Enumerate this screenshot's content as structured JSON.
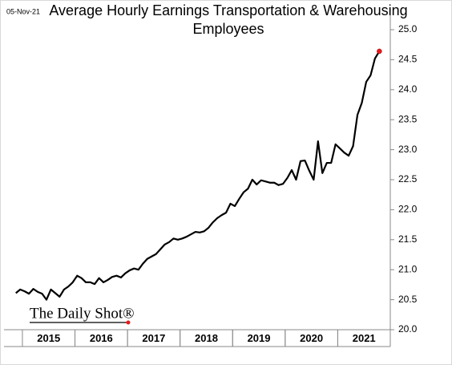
{
  "chart_data": {
    "type": "line",
    "title": "Average Hourly Earnings Transportation & Warehousing Employees",
    "date_label": "05-Nov-21",
    "source": "The Daily Shot®",
    "color": "#000000",
    "marker_color": "#e8191d",
    "x": [
      2014.875,
      2014.958,
      2015.042,
      2015.125,
      2015.208,
      2015.292,
      2015.375,
      2015.458,
      2015.542,
      2015.625,
      2015.708,
      2015.792,
      2015.875,
      2015.958,
      2016.042,
      2016.125,
      2016.208,
      2016.292,
      2016.375,
      2016.458,
      2016.542,
      2016.625,
      2016.708,
      2016.792,
      2016.875,
      2016.958,
      2017.042,
      2017.125,
      2017.208,
      2017.292,
      2017.375,
      2017.458,
      2017.542,
      2017.625,
      2017.708,
      2017.792,
      2017.875,
      2017.958,
      2018.042,
      2018.125,
      2018.208,
      2018.292,
      2018.375,
      2018.458,
      2018.542,
      2018.625,
      2018.708,
      2018.792,
      2018.875,
      2018.958,
      2019.042,
      2019.125,
      2019.208,
      2019.292,
      2019.375,
      2019.458,
      2019.542,
      2019.625,
      2019.708,
      2019.792,
      2019.875,
      2019.958,
      2020.042,
      2020.125,
      2020.208,
      2020.292,
      2020.375,
      2020.458,
      2020.542,
      2020.625,
      2020.708,
      2020.792,
      2020.875,
      2020.958,
      2021.042,
      2021.125,
      2021.208,
      2021.292,
      2021.375,
      2021.458,
      2021.542,
      2021.625,
      2021.708,
      2021.792
    ],
    "values": [
      20.61,
      20.67,
      20.64,
      20.6,
      20.68,
      20.63,
      20.6,
      20.5,
      20.67,
      20.61,
      20.55,
      20.67,
      20.72,
      20.79,
      20.9,
      20.86,
      20.79,
      20.79,
      20.76,
      20.86,
      20.79,
      20.83,
      20.88,
      20.9,
      20.87,
      20.94,
      20.99,
      21.02,
      21.0,
      21.1,
      21.18,
      21.22,
      21.26,
      21.34,
      21.42,
      21.46,
      21.52,
      21.5,
      21.52,
      21.55,
      21.59,
      21.63,
      21.62,
      21.64,
      21.7,
      21.79,
      21.86,
      21.91,
      21.95,
      22.1,
      22.06,
      22.18,
      22.29,
      22.35,
      22.5,
      22.42,
      22.49,
      22.47,
      22.45,
      22.45,
      22.41,
      22.43,
      22.53,
      22.66,
      22.5,
      22.81,
      22.82,
      22.65,
      22.5,
      23.14,
      22.61,
      22.78,
      22.78,
      23.09,
      23.02,
      22.95,
      22.9,
      23.06,
      23.58,
      23.78,
      24.13,
      24.24,
      24.52,
      24.64
    ],
    "xlim": [
      2014.65,
      2022.0
    ],
    "xticks": [
      {
        "value": 2015.5,
        "label": "2015"
      },
      {
        "value": 2016.5,
        "label": "2016"
      },
      {
        "value": 2017.5,
        "label": "2017"
      },
      {
        "value": 2018.5,
        "label": "2018"
      },
      {
        "value": 2019.5,
        "label": "2019"
      },
      {
        "value": 2020.5,
        "label": "2020"
      },
      {
        "value": 2021.5,
        "label": "2021"
      }
    ],
    "ylim": [
      20,
      25
    ],
    "yticks": [
      {
        "value": 20,
        "label": "20.0"
      },
      20.5,
      {
        "value": 21,
        "label": "21.0"
      },
      21.5,
      {
        "value": 22,
        "label": "22.0"
      },
      22.5,
      {
        "value": 23,
        "label": "23.0"
      },
      23.5,
      {
        "value": 24,
        "label": "24.0"
      },
      24.5,
      {
        "value": 25,
        "label": "25.0"
      }
    ],
    "y_axis_side": "right",
    "grid": false
  }
}
